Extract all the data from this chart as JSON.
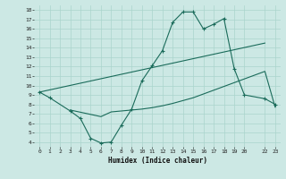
{
  "xlabel": "Humidex (Indice chaleur)",
  "bg_color": "#cce8e4",
  "grid_color": "#aad4cc",
  "line_color": "#1a6b5a",
  "xlim": [
    -0.5,
    23.5
  ],
  "ylim": [
    3.5,
    18.5
  ],
  "xticks": [
    0,
    1,
    2,
    3,
    4,
    5,
    6,
    7,
    8,
    9,
    10,
    11,
    12,
    13,
    14,
    15,
    16,
    17,
    18,
    19,
    20,
    22,
    23
  ],
  "xtick_labels": [
    "0",
    "1",
    "2",
    "3",
    "4",
    "5",
    "6",
    "7",
    "8",
    "9",
    "10",
    "11",
    "12",
    "13",
    "14",
    "15",
    "16",
    "17",
    "18",
    "19",
    "20",
    "22",
    "23"
  ],
  "yticks": [
    4,
    5,
    6,
    7,
    8,
    9,
    10,
    11,
    12,
    13,
    14,
    15,
    16,
    17,
    18
  ],
  "line1_x": [
    0,
    1,
    3,
    4,
    5,
    6,
    7,
    8,
    9,
    10,
    11,
    12,
    13,
    14,
    15,
    16,
    17,
    18,
    19,
    20,
    22,
    23
  ],
  "line1_y": [
    9.3,
    8.7,
    7.3,
    6.5,
    4.4,
    3.9,
    4.0,
    5.8,
    7.5,
    10.5,
    12.1,
    13.7,
    16.7,
    17.8,
    17.8,
    16.0,
    16.5,
    17.1,
    11.8,
    9.0,
    8.6,
    8.0
  ],
  "line2_x": [
    3,
    6,
    7,
    8,
    9,
    10,
    11,
    12,
    13,
    14,
    15,
    16,
    17,
    18,
    19,
    20,
    22,
    23
  ],
  "line2_y": [
    7.4,
    6.7,
    7.2,
    7.3,
    7.4,
    7.5,
    7.65,
    7.85,
    8.1,
    8.4,
    8.7,
    9.1,
    9.5,
    9.9,
    10.3,
    10.7,
    11.5,
    7.7
  ],
  "line3_x": [
    0,
    22
  ],
  "line3_y": [
    9.3,
    14.5
  ]
}
